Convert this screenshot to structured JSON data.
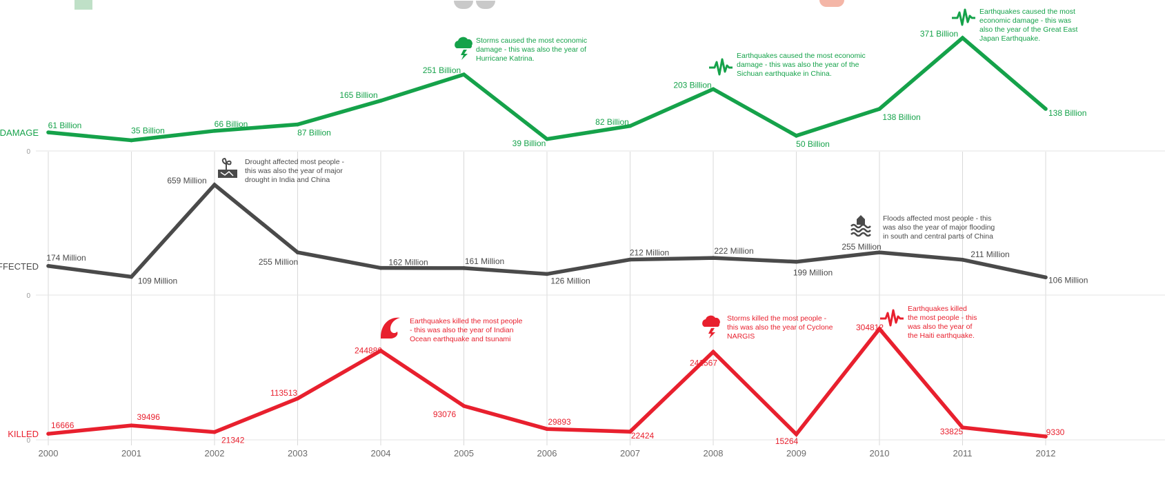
{
  "chart_data": {
    "type": "line",
    "x": [
      "2000",
      "2001",
      "2002",
      "2003",
      "2004",
      "2005",
      "2006",
      "2007",
      "2008",
      "2009",
      "2010",
      "2011",
      "2012"
    ],
    "panels": [
      {
        "name": "DAMAGE",
        "color": "#15a24a",
        "zero_label": "0",
        "values": [
          61,
          35,
          66,
          87,
          165,
          251,
          39,
          82,
          203,
          50,
          138,
          371,
          138
        ],
        "value_labels": [
          "61 Billion",
          "35 Billion",
          "66 Billion",
          "87 Billion",
          "165 Billion",
          "251 Billion",
          "39 Billion",
          "82 Billion",
          "203 Billion",
          "50 Billion",
          "138 Billion",
          "371 Billion",
          "138 Billion"
        ],
        "annotations": [
          {
            "year": "2005",
            "icon": "storm-cloud-icon",
            "text": [
              "Storms caused the most economic",
              "damage - this was also the year of",
              "Hurricane Katrina."
            ]
          },
          {
            "year": "2008",
            "icon": "seismograph-icon",
            "text": [
              "Earthquakes caused the most economic",
              "damage - this was also the year of the",
              "Sichuan earthquake in China."
            ]
          },
          {
            "year": "2011",
            "icon": "seismograph-icon",
            "text": [
              "Earthquakes caused the most",
              "economic damage - this was",
              "also the year of the Great East",
              "Japan Earthquake."
            ]
          }
        ]
      },
      {
        "name": "AFFECTED",
        "color": "#4a4a4a",
        "zero_label": "0",
        "values": [
          174,
          109,
          659,
          255,
          162,
          161,
          126,
          212,
          222,
          199,
          255,
          211,
          106
        ],
        "value_labels": [
          "174 Million",
          "109 Million",
          "659 Million",
          "255 Million",
          "162 Million",
          "161 Million",
          "126 Million",
          "212 Million",
          "222 Million",
          "199 Million",
          "255 Million",
          "211 Million",
          "106 Million"
        ],
        "annotations": [
          {
            "year": "2002",
            "icon": "drought-icon",
            "text": [
              "Drought affected most people -",
              "this was also the year of major",
              "drought in India and China"
            ]
          },
          {
            "year": "2010",
            "icon": "flood-icon",
            "text": [
              "Floods affected most people - this",
              "was also the year of major flooding",
              "in south and central parts of China"
            ]
          }
        ]
      },
      {
        "name": "KILLED",
        "color": "#e8202e",
        "zero_label": "0",
        "values": [
          16666,
          39496,
          21342,
          113513,
          244880,
          93076,
          29893,
          22424,
          241567,
          15264,
          304812,
          33825,
          9330
        ],
        "value_labels": [
          "16666",
          "39496",
          "21342",
          "113513",
          "244880",
          "93076",
          "29893",
          "22424",
          "241567",
          "15264",
          "304812",
          "33825",
          "9330"
        ],
        "annotations": [
          {
            "year": "2004",
            "icon": "wave-icon",
            "text": [
              "Earthquakes killed the most people",
              "- this was also the year of Indian",
              "Ocean earthquake and tsunami"
            ]
          },
          {
            "year": "2008",
            "icon": "storm-cloud-icon",
            "text": [
              "Storms killed the most people -",
              "this was also the year of Cyclone",
              "NARGIS"
            ]
          },
          {
            "year": "2010",
            "icon": "seismograph-icon",
            "text": [
              "Earthquakes killed",
              "the most people - this",
              "was also the year of",
              "the Haiti earthquake."
            ]
          }
        ]
      }
    ]
  }
}
